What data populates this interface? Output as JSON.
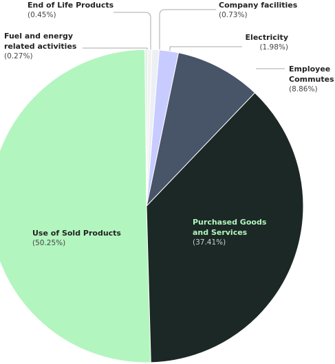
{
  "chart_data": {
    "type": "pie",
    "categories": [
      "Company facilities",
      "Electricity",
      "Employee Commutes",
      "Purchased Goods and Services",
      "Use of Sold Products",
      "Fuel and energy related activities",
      "End of Life Products"
    ],
    "values": [
      0.73,
      1.98,
      8.86,
      37.41,
      50.25,
      0.27,
      0.45
    ],
    "value_labels": [
      "(0.73%)",
      "(1.98%)",
      "(8.86%)",
      "(37.41%)",
      "(50.25%)",
      "(0.27%)",
      "(0.45%)"
    ],
    "colors": [
      "#eceff4",
      "#c8cbff",
      "#485468",
      "#1c2825",
      "#b3f5bf",
      "#dff3e4",
      "#f2f2f2"
    ]
  }
}
